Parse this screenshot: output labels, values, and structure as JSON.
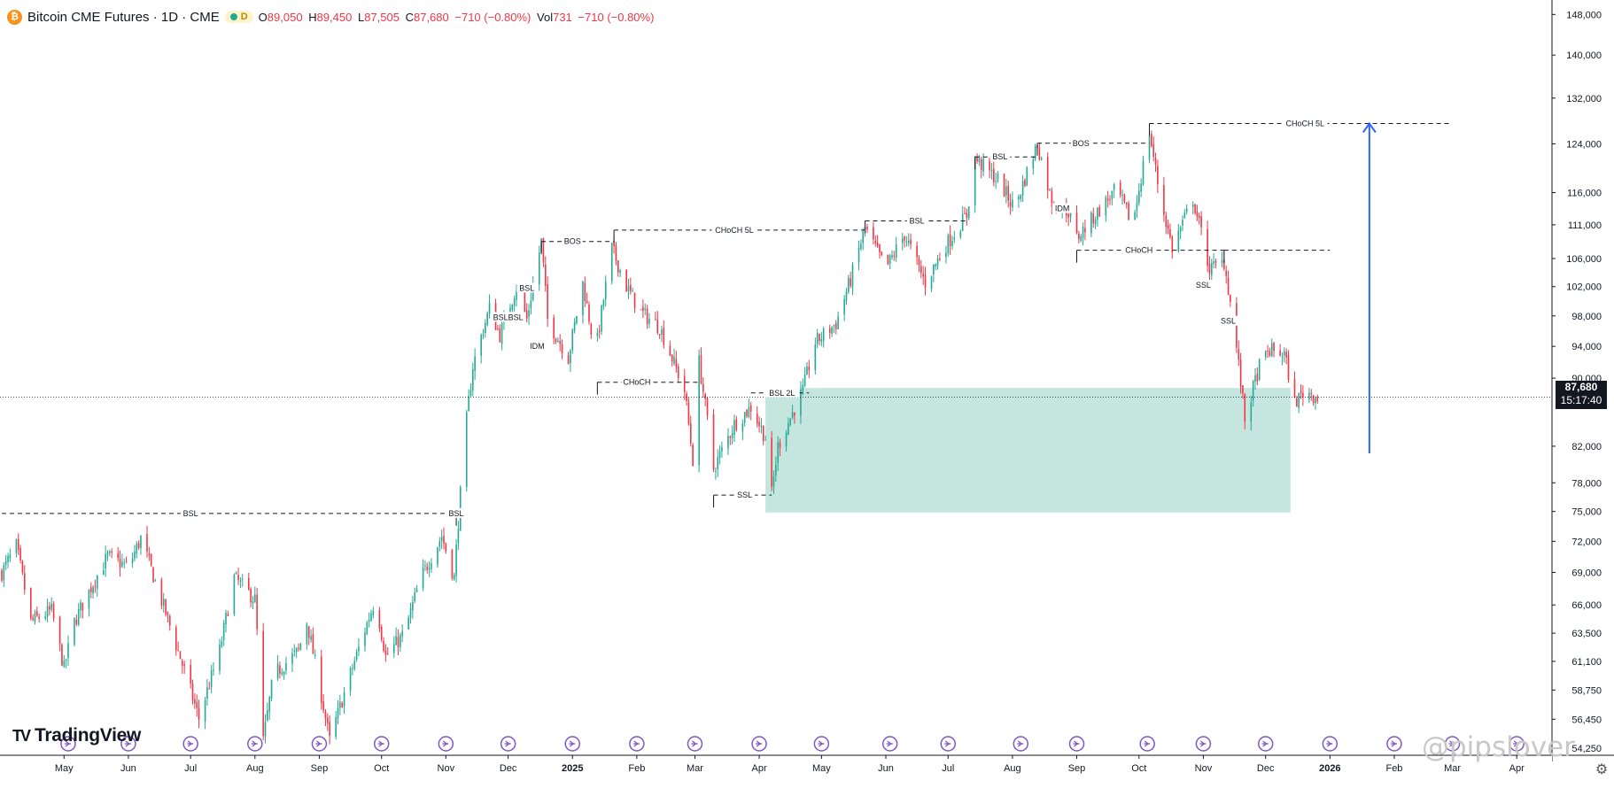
{
  "legend": {
    "symbol_icon": "bitcoin-icon",
    "symbol_glyph": "₿",
    "title": "Bitcoin CME Futures · 1D · CME",
    "status_letter": "D",
    "open_label": "O",
    "open": "89,050",
    "high_label": "H",
    "high": "89,450",
    "low_label": "L",
    "low": "87,505",
    "close_label": "C",
    "close": "87,680",
    "change": "−710 (−0.80%)",
    "vol_label": "Vol",
    "vol": "731",
    "vol_change": "−710 (−0.80%)"
  },
  "price_tag": {
    "price": "87,680",
    "countdown": "15:17:40"
  },
  "branding": {
    "logo_text": "TradingView",
    "logo_mark": "TV",
    "watermark": "@pipslover"
  },
  "colors": {
    "up": "#22ab94",
    "down": "#f23645",
    "zone": "#c5e6df",
    "arrow": "#2962ff",
    "text": "#131722"
  },
  "chart_data": {
    "type": "candlestick",
    "title": "Bitcoin CME Futures · 1D · CME",
    "y_axis": {
      "scale": "log",
      "ticks": [
        148000,
        140000,
        132000,
        124000,
        116000,
        111000,
        106000,
        102000,
        98000,
        94000,
        90000,
        82000,
        78000,
        75000,
        72000,
        69000,
        66000,
        63500,
        61100,
        58750,
        56450,
        54250
      ],
      "tick_labels": [
        "148,000",
        "140,000",
        "132,000",
        "124,000",
        "116,000",
        "111,000",
        "106,000",
        "102,000",
        "98,000",
        "94,000",
        "90,000",
        "82,000",
        "78,000",
        "75,000",
        "72,000",
        "69,000",
        "66,000",
        "63,500",
        "61,100",
        "58,750",
        "56,450",
        "54,250"
      ],
      "range": [
        53800,
        149500
      ]
    },
    "x_axis": {
      "range": [
        "2024-04-01",
        "2026-04-18"
      ],
      "ticks": [
        {
          "date": "2024-05-01",
          "label": "May",
          "bold": false
        },
        {
          "date": "2024-06-01",
          "label": "Jun",
          "bold": false
        },
        {
          "date": "2024-07-01",
          "label": "Jul",
          "bold": false
        },
        {
          "date": "2024-08-01",
          "label": "Aug",
          "bold": false
        },
        {
          "date": "2024-09-01",
          "label": "Sep",
          "bold": false
        },
        {
          "date": "2024-10-01",
          "label": "Oct",
          "bold": false
        },
        {
          "date": "2024-11-01",
          "label": "Nov",
          "bold": false
        },
        {
          "date": "2024-12-01",
          "label": "Dec",
          "bold": false
        },
        {
          "date": "2025-01-01",
          "label": "2025",
          "bold": true
        },
        {
          "date": "2025-02-01",
          "label": "Feb",
          "bold": false
        },
        {
          "date": "2025-03-01",
          "label": "Mar",
          "bold": false
        },
        {
          "date": "2025-04-01",
          "label": "Apr",
          "bold": false
        },
        {
          "date": "2025-05-01",
          "label": "May",
          "bold": false
        },
        {
          "date": "2025-06-01",
          "label": "Jun",
          "bold": false
        },
        {
          "date": "2025-07-01",
          "label": "Jul",
          "bold": false
        },
        {
          "date": "2025-08-01",
          "label": "Aug",
          "bold": false
        },
        {
          "date": "2025-09-01",
          "label": "Sep",
          "bold": false
        },
        {
          "date": "2025-10-01",
          "label": "Oct",
          "bold": false
        },
        {
          "date": "2025-11-01",
          "label": "Nov",
          "bold": false
        },
        {
          "date": "2025-12-01",
          "label": "Dec",
          "bold": false
        },
        {
          "date": "2026-01-01",
          "label": "2026",
          "bold": true
        },
        {
          "date": "2026-02-01",
          "label": "Feb",
          "bold": false
        },
        {
          "date": "2026-03-01",
          "label": "Mar",
          "bold": false
        },
        {
          "date": "2026-04-01",
          "label": "Apr",
          "bold": false
        }
      ]
    },
    "price_path": [
      [
        "2024-04-01",
        69000
      ],
      [
        "2024-04-08",
        71500
      ],
      [
        "2024-04-15",
        64500
      ],
      [
        "2024-04-25",
        65500
      ],
      [
        "2024-05-01",
        60500
      ],
      [
        "2024-05-06",
        64500
      ],
      [
        "2024-05-15",
        68000
      ],
      [
        "2024-05-22",
        70500
      ],
      [
        "2024-06-01",
        69500
      ],
      [
        "2024-06-07",
        72300
      ],
      [
        "2024-06-15",
        67500
      ],
      [
        "2024-06-24",
        62500
      ],
      [
        "2024-07-05",
        56500
      ],
      [
        "2024-07-15",
        62000
      ],
      [
        "2024-07-22",
        68500
      ],
      [
        "2024-08-01",
        66500
      ],
      [
        "2024-08-05",
        54800
      ],
      [
        "2024-08-10",
        60000
      ],
      [
        "2024-08-22",
        62000
      ],
      [
        "2024-08-26",
        64500
      ],
      [
        "2024-09-06",
        54800
      ],
      [
        "2024-09-15",
        59500
      ],
      [
        "2024-09-28",
        66500
      ],
      [
        "2024-10-03",
        61500
      ],
      [
        "2024-10-12",
        63500
      ],
      [
        "2024-10-20",
        68500
      ],
      [
        "2024-10-30",
        72500
      ],
      [
        "2024-11-05",
        68500
      ],
      [
        "2024-11-08",
        76800
      ],
      [
        "2024-11-11",
        85000
      ],
      [
        "2024-11-14",
        91500
      ],
      [
        "2024-11-22",
        99000
      ],
      [
        "2024-11-27",
        95500
      ],
      [
        "2024-12-05",
        102000
      ],
      [
        "2024-12-10",
        97500
      ],
      [
        "2024-12-17",
        108500
      ],
      [
        "2024-12-20",
        97500
      ],
      [
        "2024-12-30",
        92500
      ],
      [
        "2025-01-06",
        102500
      ],
      [
        "2025-01-12",
        93000
      ],
      [
        "2025-01-20",
        107500
      ],
      [
        "2025-01-27",
        102000
      ],
      [
        "2025-02-03",
        98500
      ],
      [
        "2025-02-12",
        96500
      ],
      [
        "2025-02-24",
        88500
      ],
      [
        "2025-02-28",
        80500
      ],
      [
        "2025-03-03",
        92000
      ],
      [
        "2025-03-10",
        79500
      ],
      [
        "2025-03-20",
        84500
      ],
      [
        "2025-03-28",
        86500
      ],
      [
        "2025-04-04",
        83000
      ],
      [
        "2025-04-07",
        76800
      ],
      [
        "2025-04-10",
        82000
      ],
      [
        "2025-04-22",
        88500
      ],
      [
        "2025-04-28",
        94500
      ],
      [
        "2025-05-08",
        97000
      ],
      [
        "2025-05-15",
        103000
      ],
      [
        "2025-05-22",
        110500
      ],
      [
        "2025-06-01",
        104500
      ],
      [
        "2025-06-10",
        109500
      ],
      [
        "2025-06-20",
        102500
      ],
      [
        "2025-06-30",
        108000
      ],
      [
        "2025-07-10",
        112500
      ],
      [
        "2025-07-14",
        121500
      ],
      [
        "2025-07-25",
        118000
      ],
      [
        "2025-08-02",
        113500
      ],
      [
        "2025-08-13",
        124000
      ],
      [
        "2025-08-20",
        114500
      ],
      [
        "2025-08-28",
        113000
      ],
      [
        "2025-09-01",
        109000
      ],
      [
        "2025-09-10",
        112500
      ],
      [
        "2025-09-20",
        116500
      ],
      [
        "2025-09-28",
        111000
      ],
      [
        "2025-10-06",
        126000
      ],
      [
        "2025-10-11",
        115500
      ],
      [
        "2025-10-17",
        107500
      ],
      [
        "2025-10-27",
        115000
      ],
      [
        "2025-11-04",
        104500
      ],
      [
        "2025-11-11",
        105500
      ],
      [
        "2025-11-16",
        96000
      ],
      [
        "2025-11-21",
        85000
      ],
      [
        "2025-11-28",
        91500
      ],
      [
        "2025-12-03",
        93500
      ],
      [
        "2025-12-10",
        93000
      ],
      [
        "2025-12-15",
        87000
      ],
      [
        "2025-12-20",
        88500
      ],
      [
        "2025-12-26",
        87680
      ]
    ],
    "last_close": 87680,
    "annotations": [
      {
        "label": "BSL",
        "price": 74800,
        "from": "2024-04-01",
        "to": "2024-11-06",
        "text_at": "2024-07-01",
        "mark": "2024-11-06"
      },
      {
        "label": "BSL",
        "price": 74800,
        "from": null,
        "to": null,
        "text_at": "2024-11-06",
        "mark": null
      },
      {
        "label": "BSLBSL",
        "price": 97800,
        "from": null,
        "to": null,
        "text_at": "2024-12-01",
        "mark": null
      },
      {
        "label": "BSL",
        "price": 101800,
        "from": null,
        "to": null,
        "text_at": "2024-12-10",
        "mark": null
      },
      {
        "label": "IDM",
        "price": 94000,
        "from": null,
        "to": null,
        "text_at": "2024-12-15",
        "mark": null
      },
      {
        "label": "BOS",
        "price": 108500,
        "from": "2024-12-17",
        "to": "2025-01-21",
        "text_at": "2025-01-01",
        "mark": "2024-12-17"
      },
      {
        "label": "CHoCH 5L",
        "price": 110200,
        "from": "2025-01-21",
        "to": "2025-05-22",
        "text_at": "2025-03-20",
        "mark": "2025-01-21"
      },
      {
        "label": "CHoCH",
        "price": 89500,
        "from": "2025-01-13",
        "to": "2025-03-03",
        "text_at": "2025-02-01",
        "mark": "2025-01-13"
      },
      {
        "label": "BSL 2L",
        "price": 88200,
        "from": "2025-03-28",
        "to": "2025-04-25",
        "text_at": "2025-04-12",
        "mark": null
      },
      {
        "label": "SSL",
        "price": 76700,
        "from": "2025-03-10",
        "to": "2025-04-07",
        "text_at": "2025-03-25",
        "mark": "2025-03-10"
      },
      {
        "label": "BSL",
        "price": 111600,
        "from": "2025-05-22",
        "to": "2025-07-10",
        "text_at": "2025-06-16",
        "mark": "2025-05-22"
      },
      {
        "label": "BSL",
        "price": 121800,
        "from": "2025-07-14",
        "to": "2025-08-13",
        "text_at": "2025-07-26",
        "mark": "2025-07-14"
      },
      {
        "label": "BOS",
        "price": 124100,
        "from": "2025-08-13",
        "to": "2025-10-06",
        "text_at": "2025-09-03",
        "mark": "2025-08-13"
      },
      {
        "label": "CHoCH 5L",
        "price": 127500,
        "from": "2025-10-06",
        "to": "2026-03-01",
        "text_at": "2025-12-20",
        "mark": "2025-10-06"
      },
      {
        "label": "IDM",
        "price": 113500,
        "from": null,
        "to": null,
        "text_at": "2025-08-25",
        "mark": null
      },
      {
        "label": "CHoCH",
        "price": 107200,
        "from": "2025-09-01",
        "to": "2025-11-11",
        "text_at": "2025-10-01",
        "mark": "2025-09-01"
      },
      {
        "label": "SSL",
        "price": 102200,
        "from": null,
        "to": null,
        "text_at": "2025-11-01",
        "mark": null
      },
      {
        "label": "SSL",
        "price": 97300,
        "from": null,
        "to": null,
        "text_at": "2025-11-13",
        "mark": null
      },
      {
        "label": "",
        "price": 107200,
        "from": "2025-11-11",
        "to": "2026-01-01",
        "text_at": null,
        "mark": "2025-11-11"
      }
    ],
    "zone": {
      "from": "2025-04-04",
      "to": "2025-12-13",
      "price_low": 74900,
      "price_high": 88800
    },
    "projection_arrow": {
      "date": "2026-01-20",
      "from_price": 81200,
      "to_price": 127500
    },
    "event_markers": [
      "2024-05-03",
      "2024-06-01",
      "2024-07-01",
      "2024-08-01",
      "2024-09-01",
      "2024-10-01",
      "2024-11-01",
      "2024-12-01",
      "2025-01-01",
      "2025-02-01",
      "2025-03-01",
      "2025-04-01",
      "2025-05-01",
      "2025-06-03",
      "2025-07-01",
      "2025-08-05",
      "2025-09-01",
      "2025-10-05",
      "2025-11-01",
      "2025-12-01",
      "2026-01-01",
      "2026-02-01",
      "2026-03-01",
      "2026-04-01"
    ]
  }
}
